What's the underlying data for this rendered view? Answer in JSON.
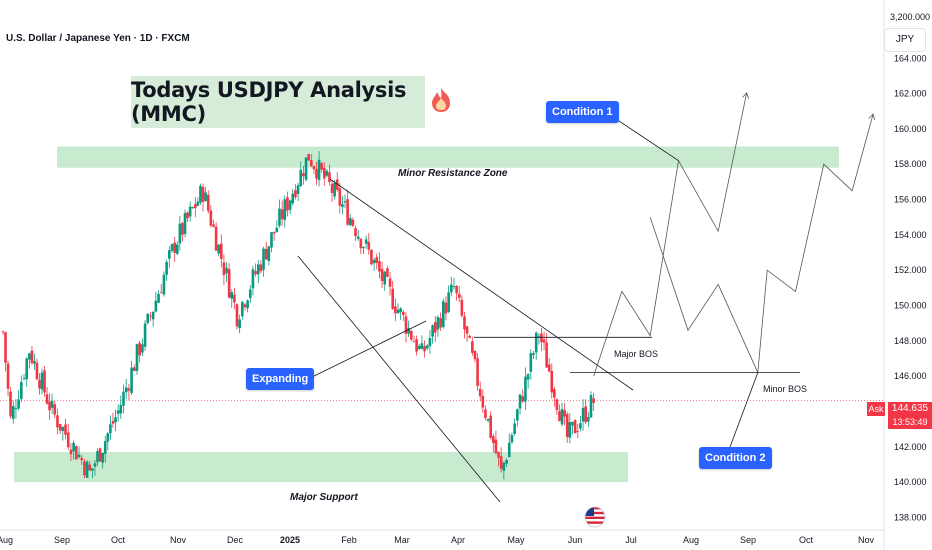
{
  "symbol": {
    "title": "U.S. Dollar / Japanese Yen · 1D · FXCM",
    "currency": "JPY"
  },
  "headline": "Todays USDJPY Analysis (MMC)",
  "icons": {
    "fire": "fire-icon",
    "flag": "us-flag-icon"
  },
  "colors": {
    "bull": "#089981",
    "bear": "#f23645",
    "zone": "#c8eacf",
    "tag": "#2962ff",
    "line": "#131722"
  },
  "zones": {
    "resistance": "Minor Resistance Zone",
    "support": "Major Support"
  },
  "labels": {
    "condition1": "Condition 1",
    "condition2": "Condition 2",
    "expanding": "Expanding",
    "major_bos": "Major BOS",
    "minor_bos": "Minor BOS"
  },
  "price_marker": {
    "side": "Ask",
    "price": "144.635",
    "timer": "13:53:49"
  },
  "chart_data": {
    "type": "candlestick",
    "y_axis": {
      "top_label": "3,200.000",
      "ticks": [
        "164.000",
        "162.000",
        "160.000",
        "158.000",
        "156.000",
        "154.000",
        "152.000",
        "150.000",
        "148.000",
        "146.000",
        "144.000",
        "142.000",
        "140.000",
        "138.000"
      ],
      "range": [
        137.8,
        165.6
      ]
    },
    "x_axis": {
      "ticks": [
        "Aug",
        "Sep",
        "Oct",
        "Nov",
        "Dec",
        "2025",
        "Feb",
        "Mar",
        "Apr",
        "May",
        "Jun",
        "Jul",
        "Aug",
        "Sep",
        "Oct",
        "Nov"
      ]
    },
    "price_path": [
      [
        "2024-08-01",
        148.5
      ],
      [
        "2024-08-05",
        143.5
      ],
      [
        "2024-08-15",
        147.5
      ],
      [
        "2024-08-27",
        144.0
      ],
      [
        "2024-09-16",
        140.5
      ],
      [
        "2024-10-01",
        144.0
      ],
      [
        "2024-10-31",
        153.5
      ],
      [
        "2024-11-15",
        156.5
      ],
      [
        "2024-12-03",
        149.5
      ],
      [
        "2025-01-10",
        158.5
      ],
      [
        "2025-02-01",
        155.0
      ],
      [
        "2025-03-11",
        147.2
      ],
      [
        "2025-03-28",
        151.0
      ],
      [
        "2025-04-22",
        140.5
      ],
      [
        "2025-05-12",
        148.5
      ],
      [
        "2025-05-27",
        142.5
      ],
      [
        "2025-06-10",
        144.6
      ]
    ],
    "resistance_zone": {
      "from": 157.8,
      "to": 159.0,
      "label": "Minor Resistance Zone"
    },
    "support_zone": {
      "from": 140.0,
      "to": 141.7,
      "label": "Major Support"
    },
    "major_bos": {
      "price": 148.2,
      "label": "Major BOS"
    },
    "minor_bos": {
      "price": 146.2,
      "label": "Minor BOS"
    },
    "condition1_path": [
      [
        "2025-06-10",
        146.0
      ],
      [
        "2025-06-25",
        150.8
      ],
      [
        "2025-07-10",
        148.3
      ],
      [
        "2025-07-25",
        158.2
      ],
      [
        "2025-08-15",
        154.2
      ],
      [
        "2025-08-30",
        162.0
      ]
    ],
    "condition2_path": [
      [
        "2025-07-10",
        155.0
      ],
      [
        "2025-07-30",
        148.6
      ],
      [
        "2025-08-15",
        151.2
      ],
      [
        "2025-09-05",
        146.2
      ],
      [
        "2025-09-10",
        152.0
      ],
      [
        "2025-09-25",
        150.8
      ],
      [
        "2025-10-10",
        158.0
      ],
      [
        "2025-10-25",
        156.5
      ],
      [
        "2025-11-05",
        160.8
      ]
    ],
    "current_price": 144.635
  }
}
